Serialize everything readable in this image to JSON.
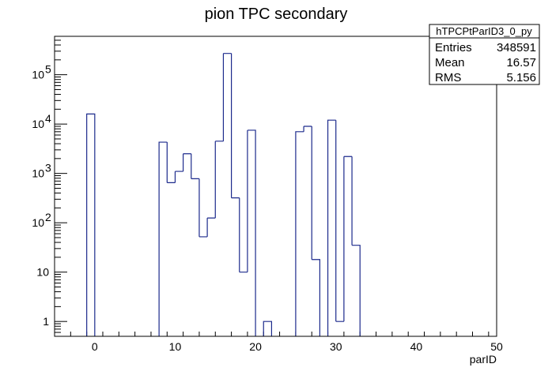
{
  "chart_data": {
    "type": "bar",
    "style": "step-histogram",
    "title": "pion TPC secondary",
    "xlabel": "parID",
    "ylabel": "",
    "xlim": [
      -5,
      50
    ],
    "ylim": [
      0.5,
      600000
    ],
    "log_y": true,
    "bin_width": 1,
    "grid": false,
    "line_color": "#1c2a8c",
    "x_ticks": [
      0,
      10,
      20,
      30,
      40,
      50
    ],
    "x_tick_labels": [
      "0",
      "10",
      "20",
      "30",
      "40",
      "50"
    ],
    "y_ticks": [
      1,
      10,
      100,
      1000,
      10000,
      100000
    ],
    "y_tick_labels": [
      {
        "base": "1",
        "exp": ""
      },
      {
        "base": "10",
        "exp": ""
      },
      {
        "base": "10",
        "exp": "2"
      },
      {
        "base": "10",
        "exp": "3"
      },
      {
        "base": "10",
        "exp": "4"
      },
      {
        "base": "10",
        "exp": "5"
      }
    ],
    "bins": [
      {
        "x": -1,
        "value": 16000
      },
      {
        "x": 8,
        "value": 4300
      },
      {
        "x": 9,
        "value": 650
      },
      {
        "x": 10,
        "value": 1100
      },
      {
        "x": 11,
        "value": 2500
      },
      {
        "x": 12,
        "value": 780
      },
      {
        "x": 13,
        "value": 52
      },
      {
        "x": 14,
        "value": 125
      },
      {
        "x": 15,
        "value": 4500
      },
      {
        "x": 16,
        "value": 270000
      },
      {
        "x": 17,
        "value": 320
      },
      {
        "x": 18,
        "value": 10
      },
      {
        "x": 19,
        "value": 7500
      },
      {
        "x": 21,
        "value": 1
      },
      {
        "x": 25,
        "value": 7000
      },
      {
        "x": 26,
        "value": 9000
      },
      {
        "x": 27,
        "value": 18
      },
      {
        "x": 29,
        "value": 12000
      },
      {
        "x": 30,
        "value": 1
      },
      {
        "x": 31,
        "value": 2200
      },
      {
        "x": 32,
        "value": 35
      }
    ],
    "stats_box": {
      "name": "hTPCPtParID3_0_py",
      "rows": [
        {
          "label": "Entries",
          "value": "348591"
        },
        {
          "label": "Mean",
          "value": "16.57"
        },
        {
          "label": "RMS",
          "value": "5.156"
        }
      ],
      "placement": "top-right"
    }
  }
}
